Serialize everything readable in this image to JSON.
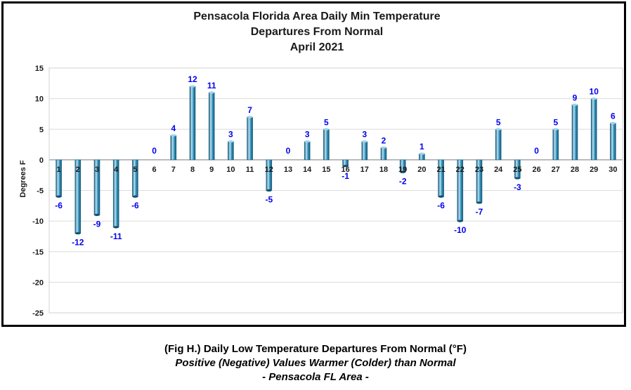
{
  "chart_data": {
    "type": "bar",
    "title": [
      "Pensacola Florida Area Daily Min Temperature",
      "Departures From Normal",
      "April 2021"
    ],
    "xlabel": "",
    "ylabel": "Degrees F",
    "ylim": [
      -25,
      15
    ],
    "yticks": [
      15,
      10,
      5,
      0,
      -5,
      -10,
      -15,
      -20,
      -25
    ],
    "grid": true,
    "categories": [
      "1",
      "2",
      "3",
      "4",
      "5",
      "6",
      "7",
      "8",
      "9",
      "10",
      "11",
      "12",
      "13",
      "14",
      "15",
      "16",
      "17",
      "18",
      "19",
      "20",
      "21",
      "22",
      "23",
      "24",
      "25",
      "26",
      "27",
      "28",
      "29",
      "30"
    ],
    "values": [
      -6,
      -12,
      -9,
      -11,
      -6,
      0,
      4,
      12,
      11,
      3,
      7,
      -5,
      0,
      3,
      5,
      -1,
      3,
      2,
      -2,
      1,
      -6,
      -10,
      -7,
      5,
      -3,
      0,
      5,
      9,
      10,
      6
    ],
    "colors": {
      "bar_light": "#bfe3f2",
      "bar_mid": "#3fa0c8",
      "bar_dark": "#14506e",
      "label": "#0000ee",
      "grid": "#dcdcdc"
    }
  },
  "caption": {
    "line1": "(Fig H.) Daily Low Temperature Departures From Normal (°F)",
    "line2": "Positive (Negative) Values Warmer (Colder) than Normal",
    "line3": "- Pensacola FL Area -"
  }
}
